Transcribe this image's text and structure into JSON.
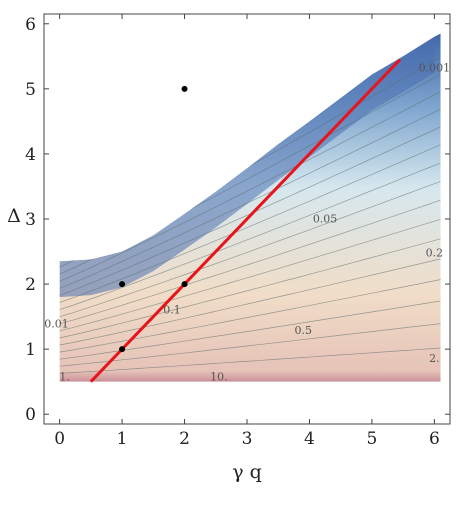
{
  "chart_data": {
    "type": "contour",
    "xlabel": "γ q",
    "ylabel": "Δ",
    "xlim": [
      -0.25,
      6.25
    ],
    "ylim": [
      -0.15,
      6.15
    ],
    "xticks": [
      "0",
      "1",
      "2",
      "3",
      "4",
      "5",
      "6"
    ],
    "yticks": [
      "0",
      "1",
      "2",
      "3",
      "4",
      "5",
      "6"
    ],
    "domain": {
      "upper_boundary": [
        [
          0,
          2.35
        ],
        [
          0.5,
          2.38
        ],
        [
          1,
          2.5
        ],
        [
          1.5,
          2.75
        ],
        [
          2,
          3.08
        ],
        [
          2.5,
          3.42
        ],
        [
          3,
          3.78
        ],
        [
          3.5,
          4.15
        ],
        [
          4,
          4.5
        ],
        [
          4.5,
          4.86
        ],
        [
          5,
          5.22
        ],
        [
          5.5,
          5.5
        ],
        [
          6,
          5.8
        ]
      ],
      "lower_boundary": 0.5,
      "x_max": 6.1
    },
    "contour_labels": [
      {
        "text": "0.001",
        "x": 6.0,
        "y": 5.27
      },
      {
        "text": "0.05",
        "x": 4.25,
        "y": 2.95
      },
      {
        "text": "0.2",
        "x": 6.0,
        "y": 2.42
      },
      {
        "text": "0.01",
        "x": -0.05,
        "y": 1.33
      },
      {
        "text": "0.1",
        "x": 1.8,
        "y": 1.55
      },
      {
        "text": "0.5",
        "x": 3.9,
        "y": 1.23
      },
      {
        "text": "2.",
        "x": 6.0,
        "y": 0.8
      },
      {
        "text": "1.",
        "x": 0.08,
        "y": 0.52
      },
      {
        "text": "10.",
        "x": 2.55,
        "y": 0.52
      }
    ],
    "points": [
      {
        "x": 1,
        "y": 1
      },
      {
        "x": 1,
        "y": 2
      },
      {
        "x": 2,
        "y": 2
      },
      {
        "x": 2,
        "y": 5
      }
    ],
    "line": {
      "x": [
        0.5,
        5.45
      ],
      "y": [
        0.5,
        5.45
      ],
      "color": "#e8141c"
    },
    "colors": {
      "high": "#3f64a8",
      "mid": "#d6e8ee",
      "low": "#f0ddc8",
      "bottom": "#c98f98"
    }
  }
}
